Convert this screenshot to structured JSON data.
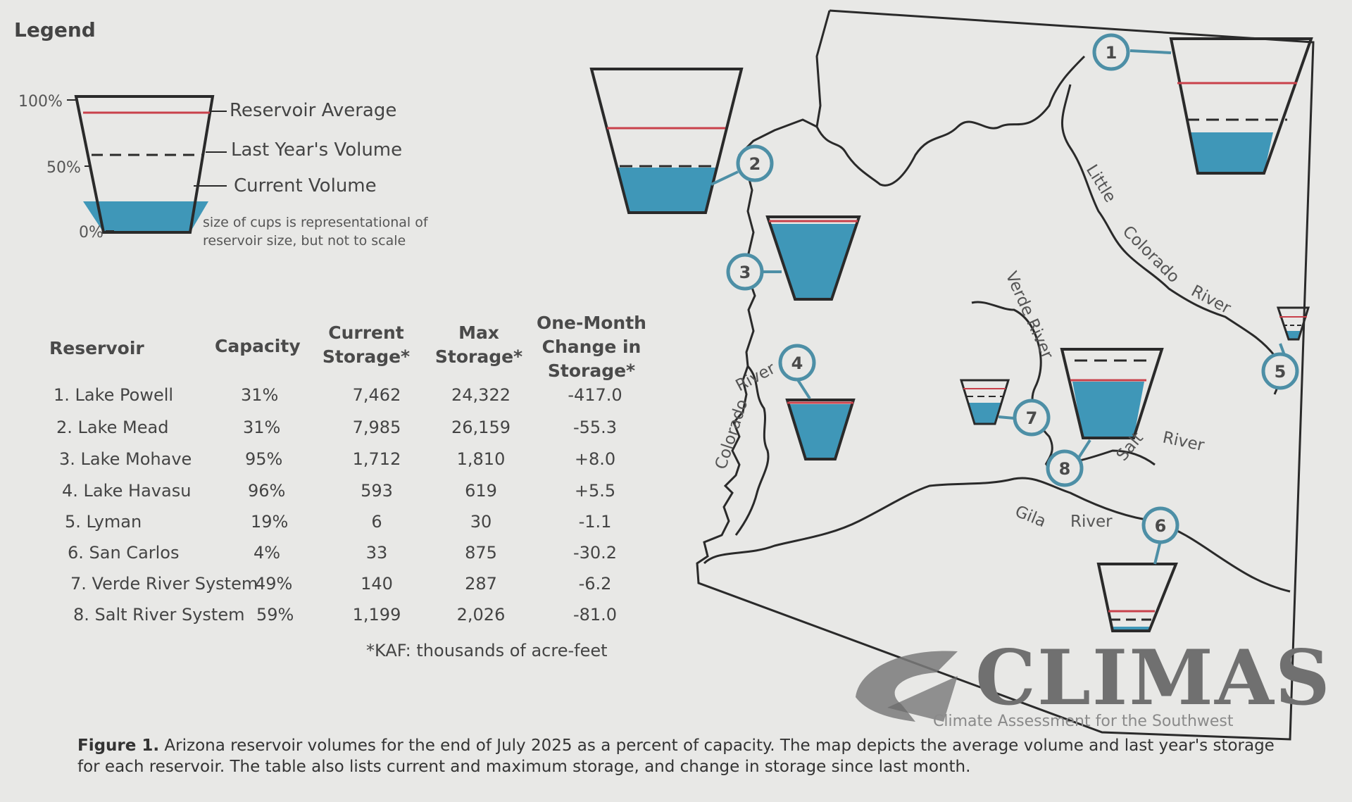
{
  "legend": {
    "title": "Legend",
    "pct_100": "100%",
    "pct_50": "50%",
    "pct_0": "0%",
    "reservoir_average": "Reservoir Average",
    "last_years_volume": "Last Year's Volume",
    "current_volume": "Current Volume",
    "note_line1": "size of cups is representational of",
    "note_line2": "reservoir size, but not to scale"
  },
  "table": {
    "headers": {
      "reservoir": "Reservoir",
      "capacity": "Capacity",
      "current_l1": "Current",
      "current_l2": "Storage*",
      "max_l1": "Max",
      "max_l2": "Storage*",
      "change_l1": "One-Month",
      "change_l2": "Change in",
      "change_l3": "Storage*"
    },
    "rows": [
      {
        "name": "1. Lake Powell",
        "capacity": "31%",
        "current": "7,462",
        "max": "24,322",
        "change": "-417.0"
      },
      {
        "name": "2. Lake Mead",
        "capacity": "31%",
        "current": "7,985",
        "max": "26,159",
        "change": "-55.3"
      },
      {
        "name": "3. Lake Mohave",
        "capacity": "95%",
        "current": "1,712",
        "max": "1,810",
        "change": "+8.0"
      },
      {
        "name": "4. Lake Havasu",
        "capacity": "96%",
        "current": "593",
        "max": "619",
        "change": "+5.5"
      },
      {
        "name": "5. Lyman",
        "capacity": "19%",
        "current": "6",
        "max": "30",
        "change": "-1.1"
      },
      {
        "name": "6. San Carlos",
        "capacity": "4%",
        "current": "33",
        "max": "875",
        "change": "-30.2"
      },
      {
        "name": "7. Verde River System",
        "capacity": "49%",
        "current": "140",
        "max": "287",
        "change": "-6.2"
      },
      {
        "name": "8. Salt River System",
        "capacity": "59%",
        "current": "1,199",
        "max": "2,026",
        "change": "-81.0"
      }
    ],
    "footnote": "*KAF: thousands of acre-feet"
  },
  "map": {
    "rivers": {
      "little": "Little",
      "colorado_little": "Colorado",
      "river_little": "River",
      "colorado_main": "Colorado",
      "river_main": "River",
      "verde": "Verde River",
      "salt": "Salt",
      "river_salt": "River",
      "gila": "Gila",
      "river_gila": "River"
    },
    "markers": [
      "1",
      "2",
      "3",
      "4",
      "5",
      "6",
      "7",
      "8"
    ],
    "reservoir_fill": {
      "1": 0.31,
      "2": 0.31,
      "3": 0.95,
      "4": 0.96,
      "5": 0.19,
      "6": 0.04,
      "7": 0.49,
      "8": 0.59
    }
  },
  "logo": {
    "word": "CLIMAS",
    "subtitle": "Climate Assessment for the Southwest"
  },
  "caption": {
    "label": "Figure 1.",
    "text": " Arizona reservoir volumes for the end of July 2025 as a percent of capacity. The map depicts the average volume and last year's storage for each reservoir. The table also lists current and maximum storage, and change in storage since last month."
  },
  "colors": {
    "water": "#3f97b8",
    "average_line": "#c9414b",
    "marker_stroke": "#4d8fa6",
    "ink": "#2a2a2a"
  }
}
